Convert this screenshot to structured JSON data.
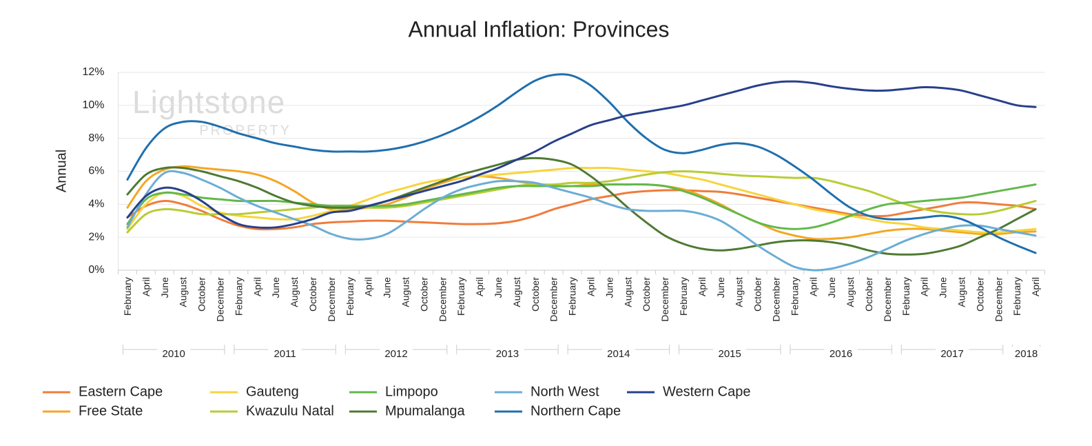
{
  "chart_data": {
    "type": "line",
    "title": "Annual Inflation: Provinces",
    "y_label": "Annual",
    "watermark": {
      "brand": "Lightstone",
      "sub": "PROPERTY"
    },
    "categories": [
      "February",
      "April",
      "June",
      "August",
      "October",
      "December",
      "February",
      "April",
      "June",
      "August",
      "October",
      "December",
      "February",
      "April",
      "June",
      "August",
      "October",
      "December",
      "February",
      "April",
      "June",
      "August",
      "October",
      "December",
      "February",
      "April",
      "June",
      "August",
      "October",
      "December",
      "February",
      "April",
      "June",
      "August",
      "October",
      "December",
      "February",
      "April",
      "June",
      "August",
      "October",
      "December",
      "February",
      "April",
      "June",
      "August",
      "October",
      "December",
      "February",
      "April"
    ],
    "category_years": [
      "2010",
      "2010",
      "2010",
      "2010",
      "2010",
      "2010",
      "2011",
      "2011",
      "2011",
      "2011",
      "2011",
      "2011",
      "2012",
      "2012",
      "2012",
      "2012",
      "2012",
      "2012",
      "2013",
      "2013",
      "2013",
      "2013",
      "2013",
      "2013",
      "2014",
      "2014",
      "2014",
      "2014",
      "2014",
      "2014",
      "2015",
      "2015",
      "2015",
      "2015",
      "2015",
      "2015",
      "2016",
      "2016",
      "2016",
      "2016",
      "2016",
      "2016",
      "2017",
      "2017",
      "2017",
      "2017",
      "2017",
      "2017",
      "2018",
      "2018"
    ],
    "ylim": [
      0,
      12
    ],
    "yticks": [
      {
        "value": 0,
        "label": "0%"
      },
      {
        "value": 2,
        "label": "2%"
      },
      {
        "value": 4,
        "label": "4%"
      },
      {
        "value": 6,
        "label": "6%"
      },
      {
        "value": 8,
        "label": "8%"
      },
      {
        "value": 10,
        "label": "10%"
      },
      {
        "value": 12,
        "label": "12%"
      }
    ],
    "grid": true,
    "smooth": true,
    "legend": "bottom",
    "series": [
      {
        "name": "Eastern Cape",
        "color": "#f07c3a",
        "values": [
          3.2,
          3.9,
          4.2,
          4.0,
          3.6,
          3.1,
          2.7,
          2.5,
          2.5,
          2.6,
          2.8,
          2.9,
          2.95,
          3.0,
          3.0,
          2.95,
          2.9,
          2.85,
          2.8,
          2.8,
          2.85,
          3.0,
          3.3,
          3.7,
          4.0,
          4.3,
          4.5,
          4.7,
          4.8,
          4.85,
          4.85,
          4.8,
          4.75,
          4.6,
          4.4,
          4.2,
          4.0,
          3.8,
          3.6,
          3.4,
          3.3,
          3.3,
          3.5,
          3.7,
          3.9,
          4.1,
          4.1,
          4.0,
          3.9,
          3.7
        ]
      },
      {
        "name": "Free State",
        "color": "#f5a623",
        "values": [
          3.8,
          5.4,
          6.1,
          6.3,
          6.2,
          6.1,
          6.0,
          5.8,
          5.4,
          4.8,
          4.1,
          3.7,
          3.7,
          3.8,
          4.0,
          4.4,
          4.9,
          5.3,
          5.6,
          5.7,
          5.6,
          5.4,
          5.2,
          5.1,
          5.1,
          5.2,
          5.2,
          5.2,
          5.2,
          5.1,
          4.9,
          4.5,
          4.0,
          3.4,
          2.9,
          2.4,
          2.1,
          1.9,
          1.9,
          2.0,
          2.2,
          2.4,
          2.5,
          2.5,
          2.4,
          2.3,
          2.2,
          2.2,
          2.3,
          2.35
        ]
      },
      {
        "name": "Gauteng",
        "color": "#f7d43c",
        "values": [
          2.5,
          4.0,
          4.7,
          4.5,
          3.9,
          3.5,
          3.3,
          3.2,
          3.1,
          3.1,
          3.3,
          3.6,
          3.9,
          4.3,
          4.7,
          5.0,
          5.3,
          5.5,
          5.6,
          5.7,
          5.8,
          5.9,
          6.0,
          6.1,
          6.2,
          6.2,
          6.2,
          6.1,
          6.0,
          5.9,
          5.7,
          5.5,
          5.2,
          4.9,
          4.6,
          4.3,
          4.0,
          3.7,
          3.5,
          3.3,
          3.1,
          2.9,
          2.8,
          2.6,
          2.5,
          2.4,
          2.3,
          2.3,
          2.4,
          2.5
        ]
      },
      {
        "name": "Kwazulu Natal",
        "color": "#b8cc33",
        "values": [
          2.3,
          3.4,
          3.7,
          3.6,
          3.4,
          3.4,
          3.4,
          3.5,
          3.6,
          3.7,
          3.8,
          3.9,
          3.9,
          3.8,
          3.8,
          3.9,
          4.1,
          4.3,
          4.5,
          4.7,
          4.9,
          5.1,
          5.2,
          5.2,
          5.3,
          5.3,
          5.4,
          5.6,
          5.8,
          5.95,
          6.0,
          5.95,
          5.85,
          5.75,
          5.7,
          5.65,
          5.6,
          5.6,
          5.4,
          5.1,
          4.8,
          4.4,
          4.0,
          3.7,
          3.5,
          3.4,
          3.4,
          3.6,
          3.9,
          4.2
        ]
      },
      {
        "name": "Limpopo",
        "color": "#62b84a",
        "values": [
          2.8,
          4.3,
          4.7,
          4.6,
          4.4,
          4.3,
          4.2,
          4.2,
          4.2,
          4.1,
          4.0,
          3.9,
          3.9,
          3.9,
          3.9,
          4.0,
          4.2,
          4.4,
          4.6,
          4.8,
          5.0,
          5.1,
          5.1,
          5.1,
          5.1,
          5.1,
          5.2,
          5.2,
          5.2,
          5.1,
          4.8,
          4.4,
          3.9,
          3.4,
          2.9,
          2.6,
          2.5,
          2.6,
          2.9,
          3.3,
          3.7,
          4.0,
          4.1,
          4.2,
          4.3,
          4.4,
          4.6,
          4.8,
          5.0,
          5.2
        ]
      },
      {
        "name": "Mpumalanga",
        "color": "#4e7a32",
        "values": [
          4.6,
          5.8,
          6.2,
          6.2,
          6.0,
          5.7,
          5.4,
          5.0,
          4.5,
          4.1,
          3.9,
          3.8,
          3.8,
          3.9,
          4.2,
          4.6,
          5.0,
          5.4,
          5.8,
          6.1,
          6.4,
          6.7,
          6.8,
          6.7,
          6.4,
          5.7,
          4.8,
          3.8,
          2.9,
          2.1,
          1.6,
          1.3,
          1.2,
          1.3,
          1.5,
          1.7,
          1.8,
          1.8,
          1.7,
          1.5,
          1.2,
          1.0,
          0.95,
          1.0,
          1.2,
          1.5,
          2.0,
          2.5,
          3.1,
          3.7
        ]
      },
      {
        "name": "North West",
        "color": "#6aadd5",
        "values": [
          2.6,
          4.6,
          5.9,
          5.9,
          5.5,
          5.0,
          4.4,
          3.9,
          3.5,
          3.1,
          2.7,
          2.2,
          1.9,
          1.9,
          2.2,
          2.9,
          3.7,
          4.4,
          4.9,
          5.2,
          5.4,
          5.4,
          5.3,
          5.0,
          4.7,
          4.4,
          4.0,
          3.7,
          3.6,
          3.6,
          3.6,
          3.4,
          3.0,
          2.3,
          1.5,
          0.8,
          0.2,
          0.0,
          0.1,
          0.4,
          0.8,
          1.3,
          1.8,
          2.2,
          2.5,
          2.7,
          2.7,
          2.5,
          2.3,
          2.1
        ]
      },
      {
        "name": "Northern Cape",
        "color": "#1f6fae",
        "values": [
          5.5,
          7.4,
          8.6,
          9.0,
          9.0,
          8.7,
          8.3,
          8.0,
          7.7,
          7.5,
          7.3,
          7.2,
          7.2,
          7.2,
          7.3,
          7.5,
          7.8,
          8.2,
          8.7,
          9.3,
          10.0,
          10.8,
          11.5,
          11.85,
          11.8,
          11.2,
          10.2,
          9.0,
          8.0,
          7.3,
          7.1,
          7.3,
          7.6,
          7.7,
          7.5,
          7.0,
          6.3,
          5.5,
          4.6,
          3.8,
          3.3,
          3.1,
          3.1,
          3.2,
          3.3,
          3.1,
          2.6,
          2.0,
          1.5,
          1.05
        ]
      },
      {
        "name": "Western Cape",
        "color": "#27408b",
        "values": [
          3.2,
          4.5,
          5.0,
          4.8,
          4.2,
          3.4,
          2.8,
          2.6,
          2.6,
          2.8,
          3.1,
          3.5,
          3.6,
          3.9,
          4.2,
          4.5,
          4.8,
          5.1,
          5.4,
          5.8,
          6.2,
          6.7,
          7.2,
          7.8,
          8.3,
          8.8,
          9.1,
          9.4,
          9.6,
          9.8,
          10.0,
          10.3,
          10.6,
          10.9,
          11.2,
          11.4,
          11.45,
          11.35,
          11.15,
          11.0,
          10.9,
          10.9,
          11.0,
          11.1,
          11.05,
          10.9,
          10.6,
          10.3,
          10.0,
          9.9
        ]
      }
    ]
  }
}
